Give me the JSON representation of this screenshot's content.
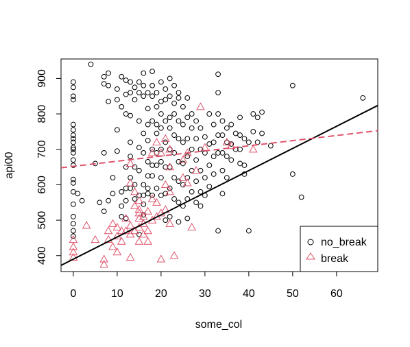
{
  "chart_data": {
    "type": "scatter",
    "title": "",
    "xlabel": "some_col",
    "ylabel": "api00",
    "xlim": [
      -2.8,
      69.4
    ],
    "ylim": [
      355,
      955
    ],
    "x_ticks": [
      0,
      10,
      20,
      30,
      40,
      50,
      60
    ],
    "y_ticks": [
      400,
      500,
      600,
      700,
      800,
      900
    ],
    "grid": false,
    "legend_position": "bottom-right",
    "series": [
      {
        "name": "no_break",
        "marker": "circle",
        "color": "#000000",
        "points": [
          [
            0,
            890
          ],
          [
            0,
            875
          ],
          [
            0,
            850
          ],
          [
            0,
            840
          ],
          [
            0,
            770
          ],
          [
            0,
            755
          ],
          [
            0,
            740
          ],
          [
            0,
            730
          ],
          [
            0,
            720
          ],
          [
            0,
            705
          ],
          [
            0,
            700
          ],
          [
            0,
            690
          ],
          [
            0,
            670
          ],
          [
            0,
            655
          ],
          [
            0,
            615
          ],
          [
            0,
            605
          ],
          [
            0,
            580
          ],
          [
            0,
            545
          ],
          [
            0,
            510
          ],
          [
            0,
            490
          ],
          [
            0,
            470
          ],
          [
            0,
            455
          ],
          [
            1,
            575
          ],
          [
            2,
            555
          ],
          [
            4,
            940
          ],
          [
            5,
            660
          ],
          [
            6,
            550
          ],
          [
            7,
            525
          ],
          [
            7,
            905
          ],
          [
            7,
            885
          ],
          [
            7,
            690
          ],
          [
            8,
            915
          ],
          [
            8,
            880
          ],
          [
            8,
            835
          ],
          [
            8,
            555
          ],
          [
            9,
            620
          ],
          [
            9,
            575
          ],
          [
            10,
            870
          ],
          [
            10,
            840
          ],
          [
            10,
            755
          ],
          [
            10,
            695
          ],
          [
            11,
            820
          ],
          [
            11,
            905
          ],
          [
            11,
            580
          ],
          [
            11,
            540
          ],
          [
            11,
            510
          ],
          [
            12,
            895
          ],
          [
            12,
            855
          ],
          [
            12,
            800
          ],
          [
            12,
            650
          ],
          [
            12,
            590
          ],
          [
            12,
            555
          ],
          [
            12,
            505
          ],
          [
            13,
            890
          ],
          [
            13,
            860
          ],
          [
            13,
            795
          ],
          [
            13,
            720
          ],
          [
            13,
            680
          ],
          [
            13,
            620
          ],
          [
            13,
            590
          ],
          [
            14,
            875
          ],
          [
            14,
            840
          ],
          [
            14,
            650
          ],
          [
            14,
            600
          ],
          [
            14,
            560
          ],
          [
            15,
            890
          ],
          [
            15,
            860
          ],
          [
            15,
            780
          ],
          [
            15,
            705
          ],
          [
            15,
            640
          ],
          [
            15,
            570
          ],
          [
            15,
            460
          ],
          [
            16,
            915
          ],
          [
            16,
            880
          ],
          [
            16,
            850
          ],
          [
            16,
            745
          ],
          [
            16,
            690
          ],
          [
            16,
            600
          ],
          [
            16,
            570
          ],
          [
            16,
            545
          ],
          [
            16,
            515
          ],
          [
            17,
            860
          ],
          [
            17,
            815
          ],
          [
            17,
            770
          ],
          [
            17,
            725
          ],
          [
            17,
            665
          ],
          [
            17,
            625
          ],
          [
            17,
            590
          ],
          [
            17,
            575
          ],
          [
            18,
            920
          ],
          [
            18,
            880
          ],
          [
            18,
            850
          ],
          [
            18,
            780
          ],
          [
            18,
            700
          ],
          [
            18,
            655
          ],
          [
            18,
            625
          ],
          [
            18,
            570
          ],
          [
            19,
            860
          ],
          [
            19,
            820
          ],
          [
            19,
            770
          ],
          [
            19,
            745
          ],
          [
            19,
            690
          ],
          [
            19,
            655
          ],
          [
            19,
            590
          ],
          [
            20,
            890
          ],
          [
            20,
            835
          ],
          [
            20,
            800
          ],
          [
            20,
            760
          ],
          [
            20,
            700
          ],
          [
            20,
            665
          ],
          [
            20,
            620
          ],
          [
            20,
            570
          ],
          [
            21,
            870
          ],
          [
            21,
            840
          ],
          [
            21,
            780
          ],
          [
            21,
            720
          ],
          [
            21,
            650
          ],
          [
            21,
            575
          ],
          [
            21,
            500
          ],
          [
            22,
            900
          ],
          [
            22,
            850
          ],
          [
            22,
            790
          ],
          [
            22,
            760
          ],
          [
            22,
            700
          ],
          [
            22,
            650
          ],
          [
            22,
            590
          ],
          [
            22,
            510
          ],
          [
            23,
            880
          ],
          [
            23,
            830
          ],
          [
            23,
            800
          ],
          [
            23,
            740
          ],
          [
            23,
            690
          ],
          [
            23,
            620
          ],
          [
            23,
            560
          ],
          [
            24,
            860
          ],
          [
            24,
            845
          ],
          [
            24,
            780
          ],
          [
            24,
            730
          ],
          [
            24,
            665
          ],
          [
            24,
            610
          ],
          [
            24,
            550
          ],
          [
            24,
            495
          ],
          [
            25,
            820
          ],
          [
            25,
            770
          ],
          [
            25,
            720
          ],
          [
            25,
            660
          ],
          [
            25,
            600
          ],
          [
            25,
            540
          ],
          [
            26,
            845
          ],
          [
            26,
            790
          ],
          [
            26,
            730
          ],
          [
            26,
            680
          ],
          [
            26,
            620
          ],
          [
            26,
            560
          ],
          [
            26,
            505
          ],
          [
            27,
            800
          ],
          [
            27,
            760
          ],
          [
            27,
            700
          ],
          [
            27,
            640
          ],
          [
            27,
            580
          ],
          [
            28,
            780
          ],
          [
            28,
            730
          ],
          [
            28,
            670
          ],
          [
            28,
            610
          ],
          [
            28,
            550
          ],
          [
            29,
            760
          ],
          [
            29,
            700
          ],
          [
            29,
            640
          ],
          [
            29,
            580
          ],
          [
            29,
            540
          ],
          [
            30,
            735
          ],
          [
            30,
            690
          ],
          [
            30,
            620
          ],
          [
            30,
            570
          ],
          [
            31,
            800
          ],
          [
            31,
            715
          ],
          [
            31,
            655
          ],
          [
            31,
            595
          ],
          [
            32,
            770
          ],
          [
            32,
            720
          ],
          [
            32,
            680
          ],
          [
            32,
            630
          ],
          [
            33,
            912
          ],
          [
            33,
            860
          ],
          [
            33,
            800
          ],
          [
            33,
            740
          ],
          [
            33,
            690
          ],
          [
            33,
            470
          ],
          [
            34,
            780
          ],
          [
            34,
            740
          ],
          [
            34,
            690
          ],
          [
            34,
            640
          ],
          [
            34,
            575
          ],
          [
            35,
            760
          ],
          [
            35,
            720
          ],
          [
            35,
            680
          ],
          [
            35,
            620
          ],
          [
            36,
            770
          ],
          [
            36,
            715
          ],
          [
            36,
            670
          ],
          [
            37,
            745
          ],
          [
            37,
            700
          ],
          [
            38,
            790
          ],
          [
            38,
            740
          ],
          [
            38,
            700
          ],
          [
            38,
            660
          ],
          [
            39,
            730
          ],
          [
            39,
            655
          ],
          [
            39,
            630
          ],
          [
            40,
            470
          ],
          [
            40,
            720
          ],
          [
            41,
            800
          ],
          [
            41,
            750
          ],
          [
            42,
            790
          ],
          [
            42,
            720
          ],
          [
            43,
            805
          ],
          [
            43,
            745
          ],
          [
            45,
            710
          ],
          [
            50,
            880
          ],
          [
            50,
            630
          ],
          [
            52,
            565
          ],
          [
            66,
            845
          ]
        ]
      },
      {
        "name": "break",
        "marker": "triangle",
        "color": "#DF536B",
        "points": [
          [
            0,
            445
          ],
          [
            0,
            425
          ],
          [
            0,
            410
          ],
          [
            0,
            395
          ],
          [
            3,
            485
          ],
          [
            5,
            445
          ],
          [
            7,
            375
          ],
          [
            7,
            390
          ],
          [
            8,
            470
          ],
          [
            8,
            445
          ],
          [
            9,
            490
          ],
          [
            9,
            425
          ],
          [
            10,
            480
          ],
          [
            10,
            455
          ],
          [
            10,
            410
          ],
          [
            11,
            470
          ],
          [
            11,
            440
          ],
          [
            12,
            505
          ],
          [
            12,
            470
          ],
          [
            13,
            660
          ],
          [
            13,
            605
          ],
          [
            13,
            485
          ],
          [
            13,
            460
          ],
          [
            13,
            395
          ],
          [
            14,
            580
          ],
          [
            14,
            540
          ],
          [
            14,
            470
          ],
          [
            15,
            555
          ],
          [
            15,
            530
          ],
          [
            15,
            520
          ],
          [
            15,
            505
          ],
          [
            15,
            480
          ],
          [
            15,
            440
          ],
          [
            16,
            510
          ],
          [
            16,
            490
          ],
          [
            16,
            460
          ],
          [
            17,
            525
          ],
          [
            17,
            470
          ],
          [
            17,
            440
          ],
          [
            18,
            690
          ],
          [
            18,
            560
          ],
          [
            18,
            500
          ],
          [
            19,
            720
          ],
          [
            19,
            550
          ],
          [
            19,
            510
          ],
          [
            20,
            690
          ],
          [
            20,
            520
          ],
          [
            20,
            390
          ],
          [
            21,
            730
          ],
          [
            21,
            600
          ],
          [
            21,
            530
          ],
          [
            22,
            700
          ],
          [
            22,
            650
          ],
          [
            22,
            580
          ],
          [
            22,
            490
          ],
          [
            23,
            400
          ],
          [
            25,
            670
          ],
          [
            25,
            620
          ],
          [
            26,
            690
          ],
          [
            26,
            605
          ],
          [
            27,
            480
          ],
          [
            28,
            640
          ],
          [
            29,
            820
          ],
          [
            30,
            705
          ],
          [
            35,
            720
          ],
          [
            36,
            710
          ],
          [
            41,
            700
          ]
        ]
      }
    ],
    "fit_lines": [
      {
        "series": "no_break",
        "intercept": 390,
        "slope": 6.25,
        "style": "solid",
        "color": "#000000"
      },
      {
        "series": "break",
        "intercept": 652,
        "slope": 1.45,
        "style": "dashed",
        "color": "#DF536B"
      }
    ]
  }
}
